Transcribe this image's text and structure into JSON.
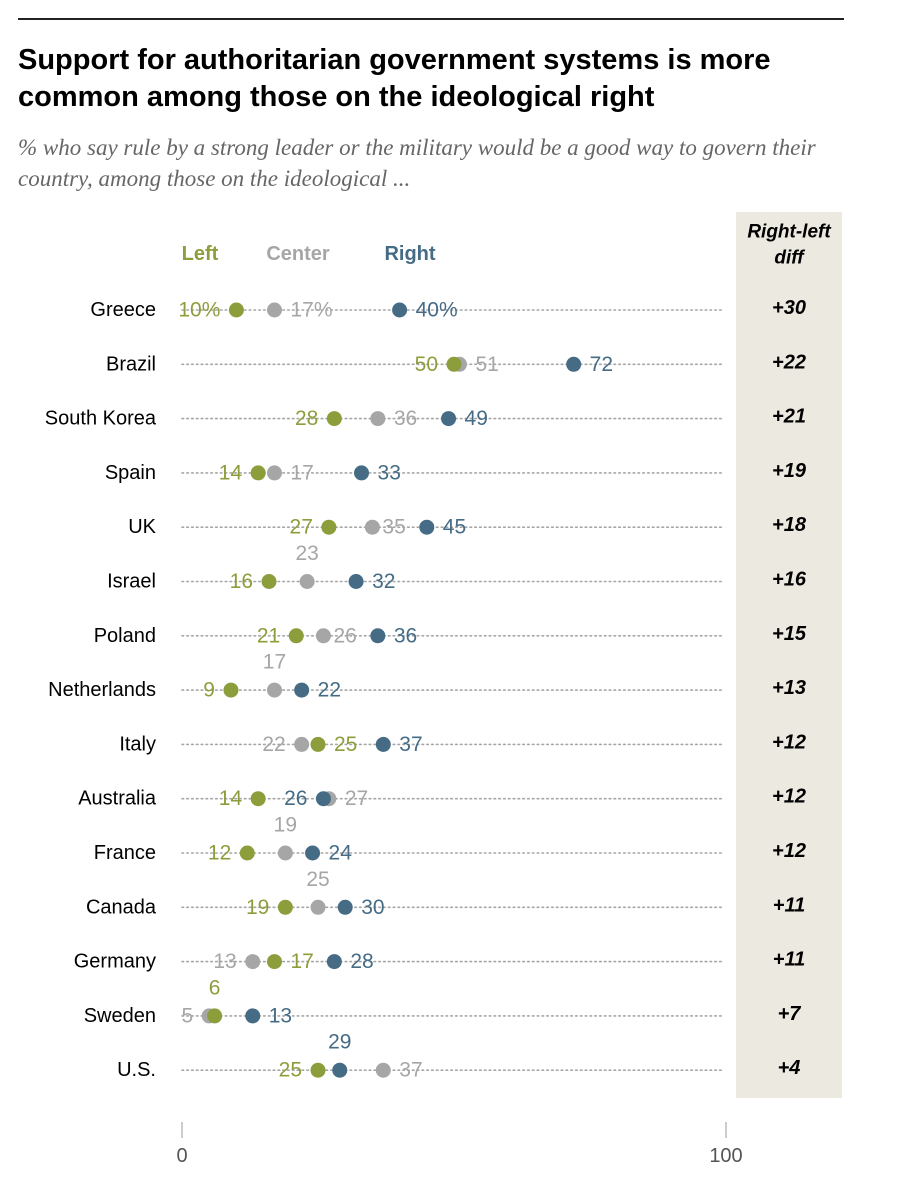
{
  "header": {
    "title": "Support for authoritarian government systems is more common among those on the ideological right",
    "subtitle": "% who say rule by a strong leader or the military would be a good way to govern their country, among those on the ideological ..."
  },
  "colors": {
    "left": "#8C9E3C",
    "center": "#A6A6A6",
    "right": "#456B85",
    "diff_panel": "#ECE9E1",
    "dotted_line": "#A6A6A6"
  },
  "chart_data": {
    "type": "dot",
    "title": "Support for authoritarian government systems is more common among those on the ideological right",
    "legend": [
      "Left",
      "Center",
      "Right"
    ],
    "diff_header": [
      "Right-left",
      "diff"
    ],
    "xlim": [
      0,
      100
    ],
    "xticks": [
      "0",
      "100"
    ],
    "rows": [
      {
        "country": "Greece",
        "left": 10,
        "center": 17,
        "right": 40,
        "left_label": "10%",
        "center_label": "17%",
        "right_label": "40%",
        "diff": "+30"
      },
      {
        "country": "Brazil",
        "left": 50,
        "center": 51,
        "right": 72,
        "left_label": "50",
        "center_label": "51",
        "right_label": "72",
        "diff": "+22"
      },
      {
        "country": "South Korea",
        "left": 28,
        "center": 36,
        "right": 49,
        "left_label": "28",
        "center_label": "36",
        "right_label": "49",
        "diff": "+21"
      },
      {
        "country": "Spain",
        "left": 14,
        "center": 17,
        "right": 33,
        "left_label": "14",
        "center_label": "17",
        "right_label": "33",
        "diff": "+19"
      },
      {
        "country": "UK",
        "left": 27,
        "center": 35,
        "right": 45,
        "left_label": "27",
        "center_label": "35",
        "right_label": "45",
        "diff": "+18"
      },
      {
        "country": "Israel",
        "left": 16,
        "center": 23,
        "right": 32,
        "left_label": "16",
        "center_label": "23",
        "right_label": "32",
        "diff": "+16"
      },
      {
        "country": "Poland",
        "left": 21,
        "center": 26,
        "right": 36,
        "left_label": "21",
        "center_label": "26",
        "right_label": "36",
        "diff": "+15"
      },
      {
        "country": "Netherlands",
        "left": 9,
        "center": 17,
        "right": 22,
        "left_label": "9",
        "center_label": "17",
        "right_label": "22",
        "diff": "+13"
      },
      {
        "country": "Italy",
        "left": 25,
        "center": 22,
        "right": 37,
        "left_label": "25",
        "center_label": "22",
        "right_label": "37",
        "diff": "+12"
      },
      {
        "country": "Australia",
        "left": 14,
        "center": 27,
        "right": 26,
        "left_label": "14",
        "center_label": "27",
        "right_label": "26",
        "diff": "+12"
      },
      {
        "country": "France",
        "left": 12,
        "center": 19,
        "right": 24,
        "left_label": "12",
        "center_label": "19",
        "right_label": "24",
        "diff": "+12"
      },
      {
        "country": "Canada",
        "left": 19,
        "center": 25,
        "right": 30,
        "left_label": "19",
        "center_label": "25",
        "right_label": "30",
        "diff": "+11"
      },
      {
        "country": "Germany",
        "left": 17,
        "center": 13,
        "right": 28,
        "left_label": "17",
        "center_label": "13",
        "right_label": "28",
        "diff": "+11"
      },
      {
        "country": "Sweden",
        "left": 6,
        "center": 5,
        "right": 13,
        "left_label": "6",
        "center_label": "5",
        "right_label": "13",
        "diff": "+7"
      },
      {
        "country": "U.S.",
        "left": 25,
        "center": 37,
        "right": 29,
        "left_label": "25",
        "center_label": "37",
        "right_label": "29",
        "diff": "+4"
      }
    ]
  }
}
